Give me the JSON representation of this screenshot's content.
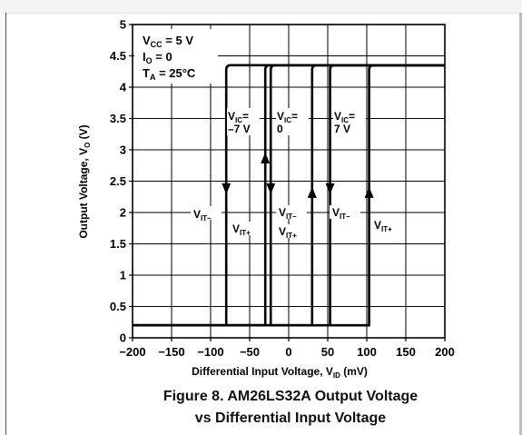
{
  "caption": {
    "line1": "Figure 8. AM26LS32A Output Voltage",
    "line2": "vs Differential Input Voltage"
  },
  "conditions": {
    "vcc_main": "V",
    "vcc_sub": "CC",
    "vcc_val": " = 5 V",
    "io_main": "I",
    "io_sub": "O",
    "io_val": " = 0",
    "ta_main": "T",
    "ta_sub": "A",
    "ta_val": " = 25°C"
  },
  "annotations": {
    "vic_neg7_line1": "= ",
    "vic_neg7_line2": "–7 V",
    "vic_0_line1": "= ",
    "vic_0_line2": "0",
    "vic_7_line1": "= ",
    "vic_7_line2": "7 V",
    "vic_main": "V",
    "vic_sub": "IC",
    "vit_main": "V",
    "vit_minus_sub": "IT–",
    "vit_plus_sub": "IT+"
  },
  "chart_data": {
    "type": "line",
    "xlabel_main": "Differential Input Voltage, V",
    "xlabel_sub": "ID",
    "xlabel_unit": " (mV)",
    "ylabel_main": "Output Voltage, V",
    "ylabel_sub": "O",
    "ylabel_unit": " (V)",
    "xlim": [
      -200,
      200
    ],
    "ylim": [
      0,
      5
    ],
    "grid": true,
    "x_ticks": [
      -200,
      -150,
      -100,
      -50,
      0,
      50,
      100,
      150,
      200
    ],
    "x_tick_labels": [
      "−200",
      "−150",
      "−100",
      "−50",
      "0",
      "50",
      "100",
      "150",
      "200"
    ],
    "y_ticks": [
      0,
      0.5,
      1,
      1.5,
      2,
      2.5,
      3,
      3.5,
      4,
      4.5,
      5
    ],
    "y_tick_labels": [
      "0",
      "0.5",
      "1",
      "1.5",
      "2",
      "2.5",
      "3",
      "3.5",
      "4",
      "4.5",
      "5"
    ],
    "v_low": 0.2,
    "v_high": 4.35,
    "series": [
      {
        "name": "VIC = –7 V",
        "vit_minus": -80,
        "vit_plus": -30
      },
      {
        "name": "VIC = 0",
        "vit_minus": -23,
        "vit_plus": 30
      },
      {
        "name": "VIC = 7 V",
        "vit_minus": 53,
        "vit_plus": 103
      }
    ]
  }
}
